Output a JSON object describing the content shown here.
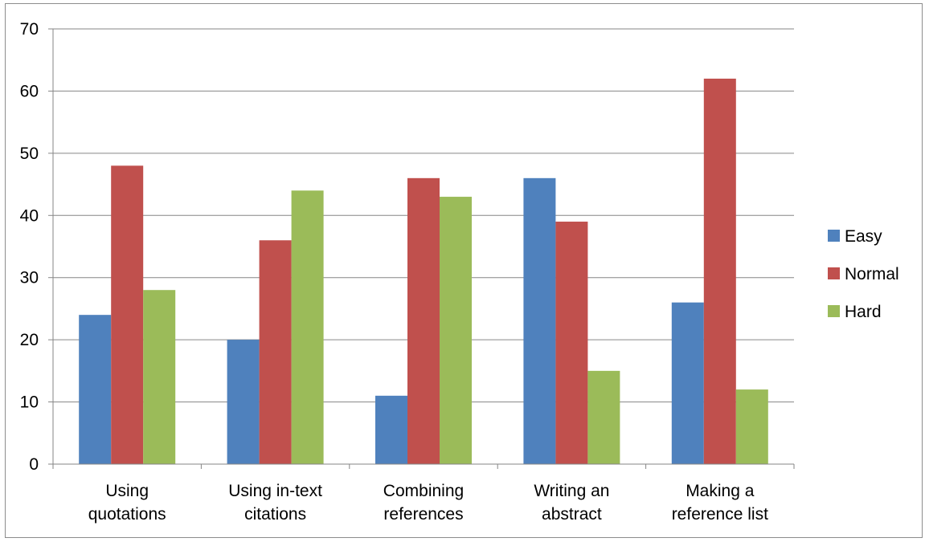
{
  "chart_data": {
    "type": "bar",
    "title": "",
    "xlabel": "",
    "ylabel": "",
    "categories": [
      [
        "Using",
        "quotations"
      ],
      [
        "Using in-text",
        "citations"
      ],
      [
        "Combining",
        "references"
      ],
      [
        "Writing an",
        "abstract"
      ],
      [
        "Making a",
        "reference list"
      ]
    ],
    "series": [
      {
        "name": "Easy",
        "color": "#4f81bd",
        "values": [
          24,
          20,
          11,
          46,
          26
        ]
      },
      {
        "name": "Normal",
        "color": "#c0504d",
        "values": [
          48,
          36,
          46,
          39,
          62
        ]
      },
      {
        "name": "Hard",
        "color": "#9bbb59",
        "values": [
          28,
          44,
          43,
          15,
          12
        ]
      }
    ],
    "ylim": [
      0,
      70
    ],
    "yticks": [
      0,
      10,
      20,
      30,
      40,
      50,
      60,
      70
    ],
    "grid": true,
    "legend_position": "right"
  }
}
